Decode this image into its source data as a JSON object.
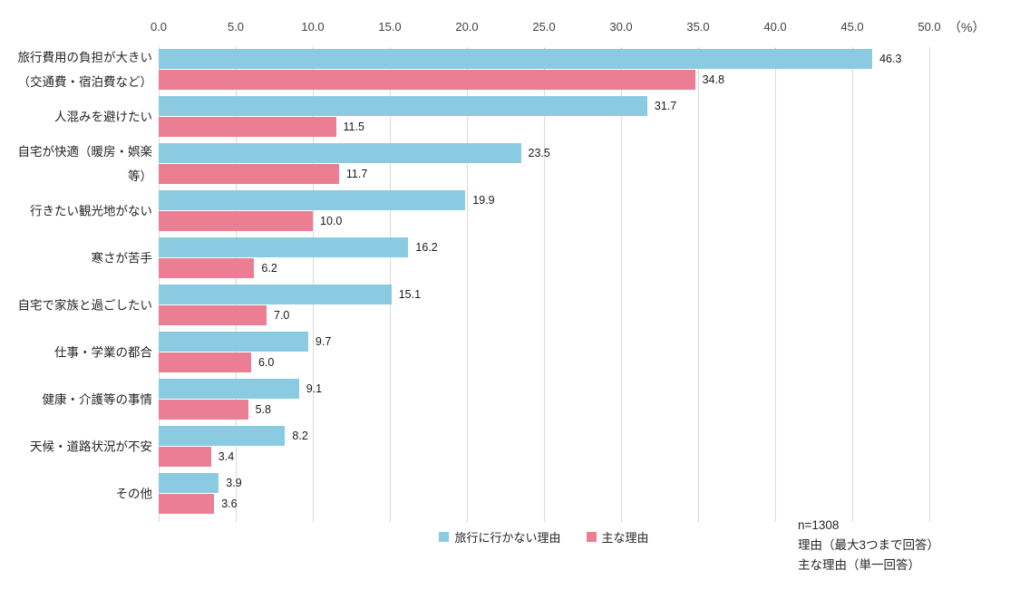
{
  "chart_data": {
    "type": "bar",
    "orientation": "horizontal",
    "title": "",
    "unit_label": "（%）",
    "xlim": [
      0,
      50
    ],
    "x_ticks": [
      "0.0",
      "5.0",
      "10.0",
      "15.0",
      "20.0",
      "25.0",
      "30.0",
      "35.0",
      "40.0",
      "45.0",
      "50.0"
    ],
    "grid": true,
    "legend_position": "bottom",
    "categories": [
      "旅行費用の負担が大きい\n（交通費・宿泊費など）",
      "人混みを避けたい",
      "自宅が快適（暖房・娯楽等）",
      "行きたい観光地がない",
      "寒さが苦手",
      "自宅で家族と過ごしたい",
      "仕事・学業の都合",
      "健康・介護等の事情",
      "天候・道路状況が不安",
      "その他"
    ],
    "series": [
      {
        "name": "旅行に行かない理由",
        "color": "#8BCBE2",
        "values": [
          46.3,
          31.7,
          23.5,
          19.9,
          16.2,
          15.1,
          9.7,
          9.1,
          8.2,
          3.9
        ]
      },
      {
        "name": "主な理由",
        "color": "#EB7E93",
        "values": [
          34.8,
          11.5,
          11.7,
          10.0,
          6.2,
          7.0,
          6.0,
          5.8,
          3.4,
          3.6
        ]
      }
    ],
    "notes": [
      "n=1308",
      "理由（最大3つまで回答）",
      "主な理由（単一回答）"
    ],
    "gridline_color": "#d9d9d9"
  }
}
